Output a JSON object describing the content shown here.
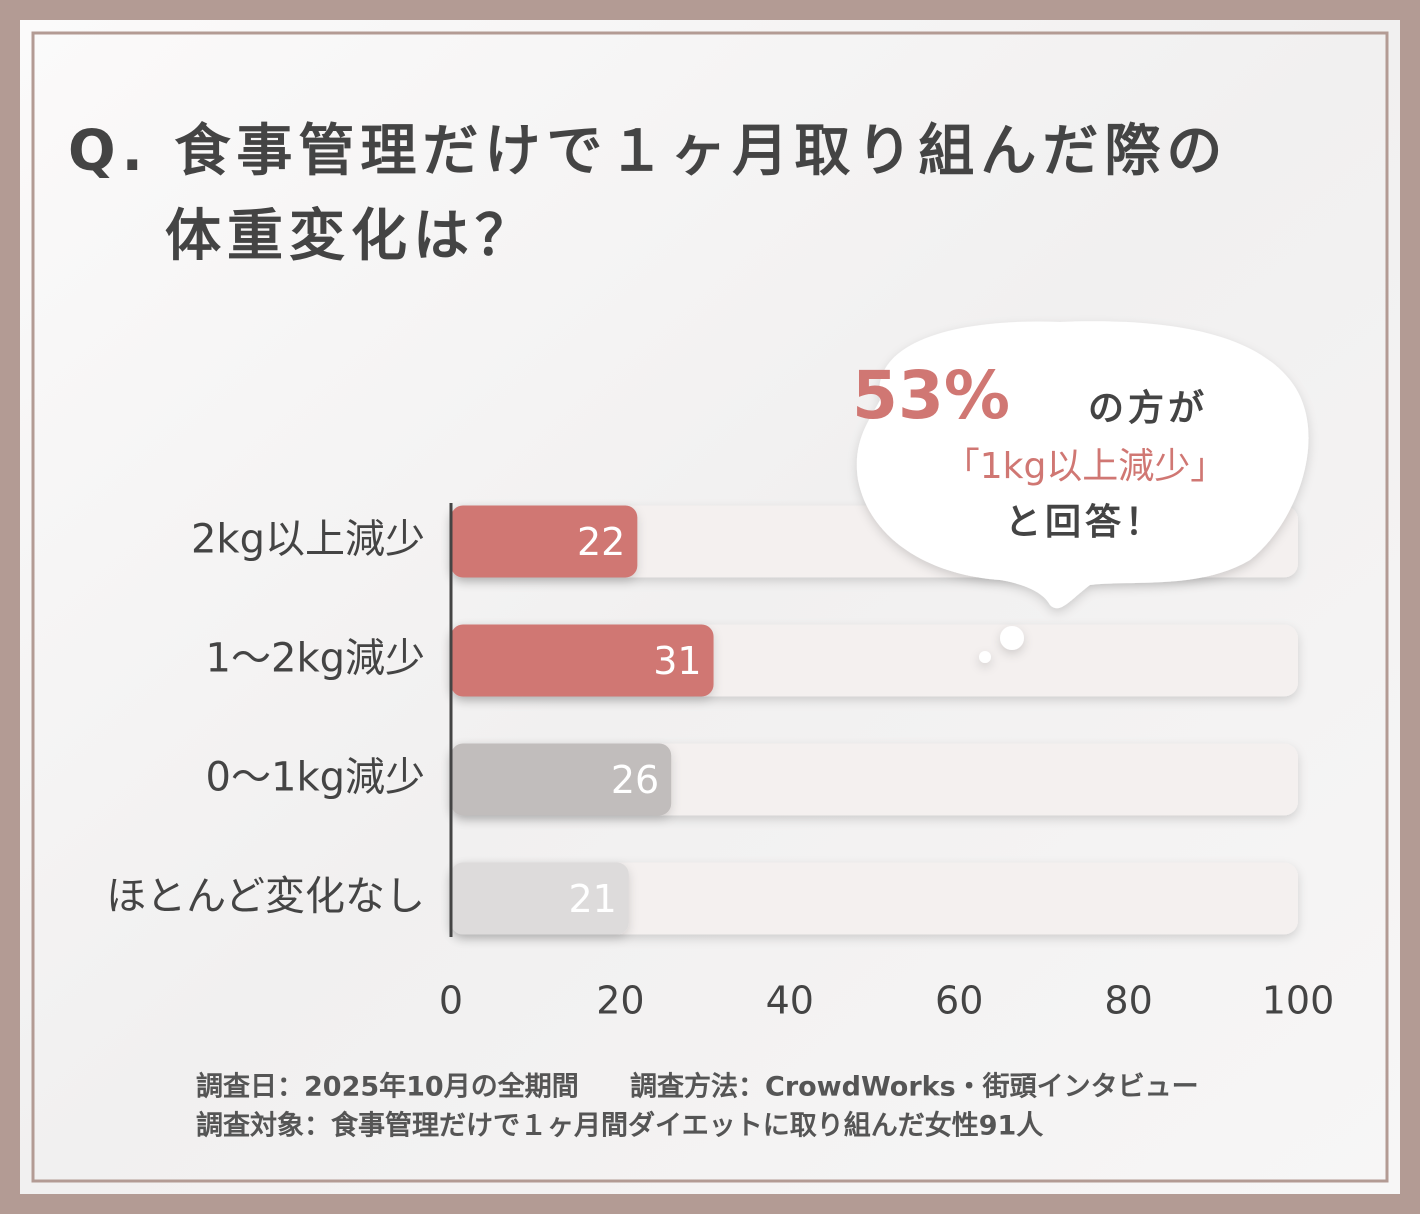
{
  "chart_data": {
    "type": "bar",
    "orientation": "horizontal",
    "title": [
      "Q. 食事管理だけで１ヶ月取り組んだ際の",
      "体重変化は？"
    ],
    "categories": [
      "2kg以上減少",
      "1～2kg減少",
      "0～1kg減少",
      "ほとんど変化なし"
    ],
    "values": [
      22,
      31,
      26,
      21
    ],
    "colors": [
      "#d07773",
      "#d07773",
      "#c1bdbc",
      "#dddbdb"
    ],
    "xlim": [
      0,
      100
    ],
    "xticks": [
      0,
      20,
      40,
      60,
      80,
      100
    ],
    "grid": false,
    "annotation": {
      "highlight": "53%",
      "line1": "の方が",
      "line2": "「1kg以上減少」",
      "line3": "と回答！"
    },
    "footnotes": [
      "調査日：2025年10月の全期間",
      "調査方法：CrowdWorks・街頭インタビュー",
      "調査対象：食事管理だけで１ヶ月間ダイエットに取り組んだ女性91人"
    ]
  }
}
